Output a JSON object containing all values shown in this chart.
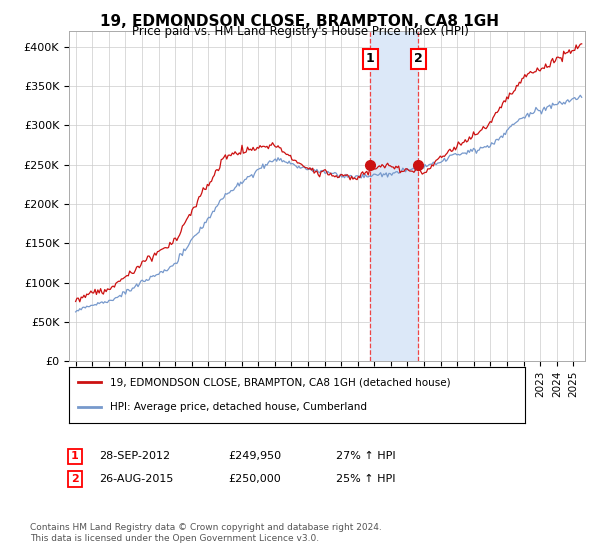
{
  "title": "19, EDMONDSON CLOSE, BRAMPTON, CA8 1GH",
  "subtitle": "Price paid vs. HM Land Registry's House Price Index (HPI)",
  "ylabel_ticks": [
    "£0",
    "£50K",
    "£100K",
    "£150K",
    "£200K",
    "£250K",
    "£300K",
    "£350K",
    "£400K"
  ],
  "ytick_values": [
    0,
    50000,
    100000,
    150000,
    200000,
    250000,
    300000,
    350000,
    400000
  ],
  "ylim": [
    0,
    420000
  ],
  "xlim_start": 1994.6,
  "xlim_end": 2025.7,
  "transaction1_date": 2012.75,
  "transaction1_price": 249950,
  "transaction2_date": 2015.65,
  "transaction2_price": 250000,
  "hpi_line_color": "#7799cc",
  "price_line_color": "#cc1111",
  "shade_color": "#dce8f8",
  "dashed_line_color": "#ee4444",
  "legend_label1": "19, EDMONDSON CLOSE, BRAMPTON, CA8 1GH (detached house)",
  "legend_label2": "HPI: Average price, detached house, Cumberland",
  "annotation1_text": "28-SEP-2012",
  "annotation1_price": "£249,950",
  "annotation1_hpi": "27% ↑ HPI",
  "annotation2_text": "26-AUG-2015",
  "annotation2_price": "£250,000",
  "annotation2_hpi": "25% ↑ HPI",
  "footnote": "Contains HM Land Registry data © Crown copyright and database right 2024.\nThis data is licensed under the Open Government Licence v3.0.",
  "background_color": "#ffffff",
  "grid_color": "#cccccc"
}
